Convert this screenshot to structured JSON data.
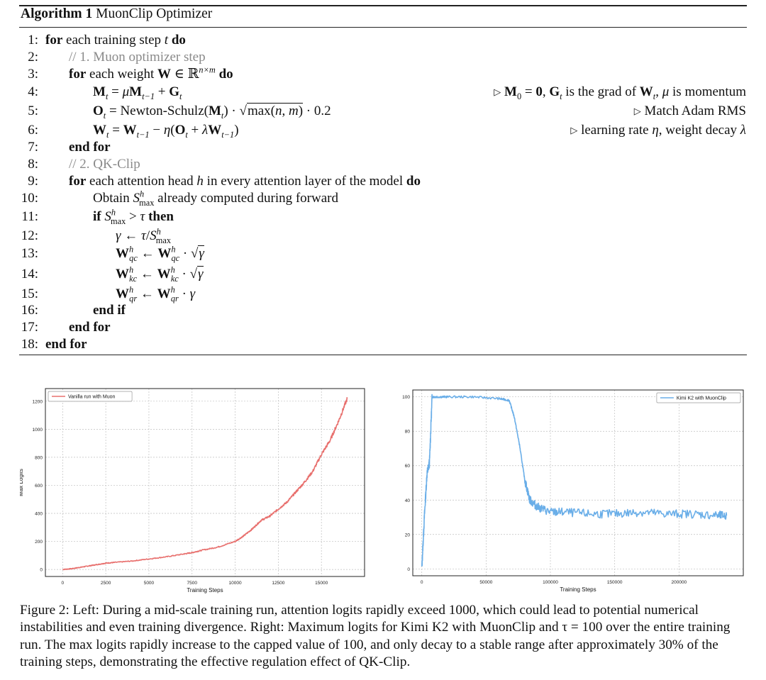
{
  "algorithm": {
    "label": "Algorithm 1",
    "name": "MuonClip Optimizer",
    "line_numbers": [
      "1:",
      "2:",
      "3:",
      "4:",
      "5:",
      "6:",
      "7:",
      "8:",
      "9:",
      "10:",
      "11:",
      "12:",
      "13:",
      "14:",
      "15:",
      "16:",
      "17:",
      "18:"
    ],
    "kw_for": "for",
    "kw_do": "do",
    "kw_if": "if",
    "kw_then": "then",
    "kw_end_for": "end for",
    "kw_end_if": "end if",
    "line1_text": "each training step",
    "line2_comment": "// 1. Muon optimizer step",
    "line3_text": "each weight",
    "line4_comment_text1": "is the grad of",
    "line4_comment_text2": "is momentum",
    "line5_comment": "Match Adam RMS",
    "line6_comment_text1": "learning rate",
    "line6_comment_text2": "weight decay",
    "line8_comment": "// 2. QK-Clip",
    "line9_text": "each attention head",
    "line9_text2": "in every attention layer of the model",
    "line10_obtain": "Obtain",
    "line10_text": "already computed during forward",
    "newton_schulz": "Newton-Schulz"
  },
  "figure_left": {
    "chart_data": {
      "type": "line",
      "legend": "Vanilla run with Muon",
      "xlabel": "Training Steps",
      "ylabel": "Max Logits",
      "xlim": [
        -1000,
        17500
      ],
      "ylim": [
        -50,
        1290
      ],
      "xticks": [
        0,
        2500,
        5000,
        7500,
        10000,
        12500,
        15000
      ],
      "yticks": [
        0,
        200,
        400,
        600,
        800,
        1000,
        1200
      ],
      "color": "#e8706e",
      "grid": true,
      "legend_position": "upper left",
      "series": [
        {
          "x": [
            0,
            500,
            1000,
            1500,
            2000,
            2500,
            3000,
            4000,
            5000,
            6000,
            7000,
            7500,
            8000,
            9000,
            10000,
            10500,
            11000,
            11500,
            12000,
            12500,
            13000,
            13500,
            14000,
            14500,
            15000,
            15500,
            16000,
            16500
          ],
          "values": [
            0,
            5,
            15,
            25,
            35,
            45,
            50,
            60,
            75,
            90,
            110,
            120,
            135,
            160,
            200,
            240,
            290,
            350,
            380,
            430,
            480,
            550,
            620,
            700,
            820,
            920,
            1060,
            1220
          ]
        }
      ]
    }
  },
  "figure_right": {
    "chart_data": {
      "type": "line",
      "legend": "Kimi K2 with MuonClip",
      "xlabel": "Training Steps",
      "ylabel": "Max Logits",
      "xlim": [
        -7000,
        250000
      ],
      "ylim": [
        -4,
        104
      ],
      "xticks": [
        0,
        50000,
        100000,
        150000,
        200000
      ],
      "yticks": [
        0,
        20,
        40,
        60,
        80,
        100
      ],
      "color": "#6aaee8",
      "grid": true,
      "legend_position": "upper right",
      "series": [
        {
          "x": [
            0,
            2000,
            4000,
            6000,
            8000,
            12000,
            20000,
            40000,
            60000,
            68000,
            72000,
            76000,
            80000,
            84000,
            90000,
            100000,
            110000,
            130000,
            150000,
            170000,
            190000,
            210000,
            230000,
            237000
          ],
          "values": [
            0,
            30,
            55,
            62,
            100,
            100,
            100,
            100,
            99,
            98,
            88,
            72,
            52,
            40,
            36,
            33,
            33,
            32,
            32,
            33,
            32,
            32,
            31,
            31
          ]
        }
      ]
    }
  },
  "caption": {
    "text": "Figure 2: Left: During a mid-scale training run, attention logits rapidly exceed 1000, which could lead to potential numerical instabilities and even training divergence. Right: Maximum logits for Kimi K2 with MuonClip and τ = 100 over the entire training run. The max logits rapidly increase to the capped value of 100, and only decay to a stable range after approximately 30% of the training steps, demonstrating the effective regulation effect of QK-Clip."
  }
}
